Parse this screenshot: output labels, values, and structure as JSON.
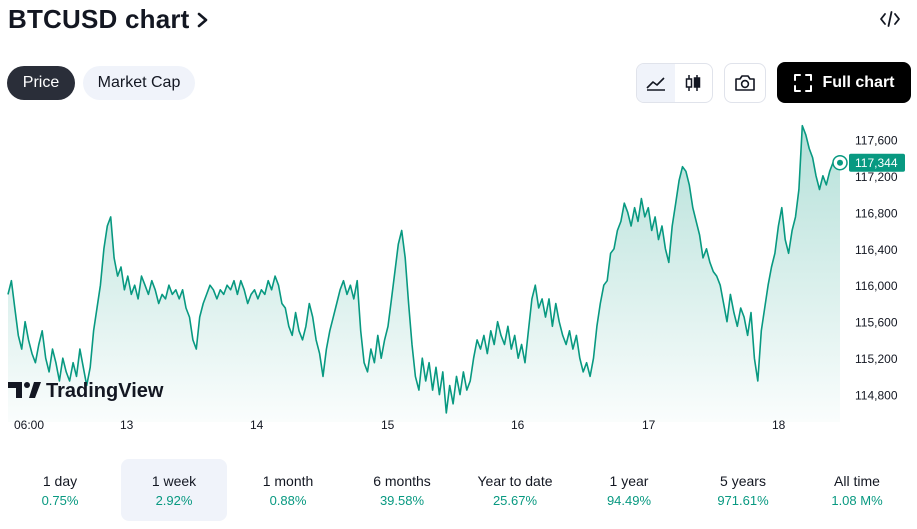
{
  "header": {
    "title": "BTCUSD chart",
    "chevron_icon": "chevron-right-icon",
    "embed_icon": "embed-code-icon"
  },
  "tabs": [
    {
      "label": "Price",
      "active": true
    },
    {
      "label": "Market Cap",
      "active": false
    }
  ],
  "toolbar": {
    "area_icon": "area-chart-icon",
    "candle_icon": "candlestick-icon",
    "snapshot_icon": "camera-icon",
    "full_chart_label": "Full chart",
    "full_chart_icon": "fullscreen-icon"
  },
  "colors": {
    "accent": "#089981",
    "dark": "#2a2e39",
    "text": "#131722",
    "muted": "#6a6d78"
  },
  "chart_data": {
    "type": "area",
    "watermark": "TradingView",
    "x_tick_labels": [
      "06:00",
      "13",
      "14",
      "15",
      "16",
      "17",
      "18"
    ],
    "y_tick_labels": [
      "117,600",
      "117,200",
      "116,800",
      "116,400",
      "116,000",
      "115,600",
      "115,200",
      "114,800"
    ],
    "ylim": [
      114500,
      117900
    ],
    "last_price": 117344,
    "last_price_label": "117,344",
    "grid": false,
    "series": [
      {
        "values": [
          115900,
          116050,
          115750,
          115450,
          115300,
          115600,
          115400,
          115250,
          115150,
          115350,
          115500,
          115200,
          115050,
          115300,
          115150,
          114950,
          115200,
          115050,
          114950,
          115150,
          115000,
          115300,
          115100,
          114900,
          115100,
          115500,
          115750,
          116000,
          116400,
          116650,
          116750,
          116300,
          116100,
          116200,
          115950,
          116100,
          115900,
          116000,
          115850,
          116100,
          116000,
          115900,
          116050,
          115950,
          115800,
          115900,
          115850,
          116000,
          115900,
          115950,
          115850,
          115950,
          115750,
          115650,
          115400,
          115300,
          115650,
          115800,
          115900,
          116000,
          115950,
          115850,
          115950,
          115900,
          116000,
          115950,
          116050,
          115900,
          116050,
          115950,
          115800,
          115900,
          115950,
          115850,
          115950,
          115900,
          116050,
          115950,
          116100,
          116000,
          115800,
          115750,
          115550,
          115450,
          115700,
          115500,
          115400,
          115550,
          115800,
          115650,
          115400,
          115250,
          115000,
          115300,
          115500,
          115650,
          115800,
          115950,
          116050,
          115900,
          116000,
          115850,
          116050,
          115500,
          115150,
          115050,
          115300,
          115150,
          115450,
          115200,
          115400,
          115550,
          115850,
          116150,
          116450,
          116600,
          116300,
          115800,
          115350,
          115000,
          114850,
          115200,
          114950,
          115150,
          114850,
          115100,
          114800,
          115050,
          114600,
          114900,
          114700,
          115000,
          114800,
          115050,
          114850,
          114950,
          115200,
          115400,
          115300,
          115450,
          115250,
          115500,
          115350,
          115600,
          115450,
          115350,
          115550,
          115300,
          115450,
          115200,
          115350,
          115150,
          115500,
          115850,
          116000,
          115750,
          115850,
          115650,
          115850,
          115550,
          115800,
          115600,
          115450,
          115350,
          115500,
          115300,
          115450,
          115200,
          115050,
          115150,
          115000,
          115200,
          115550,
          115800,
          116000,
          116050,
          116350,
          116400,
          116600,
          116700,
          116900,
          116800,
          116650,
          116850,
          116700,
          116950,
          116750,
          116850,
          116600,
          116750,
          116500,
          116650,
          116400,
          116250,
          116650,
          116900,
          117150,
          117300,
          117250,
          117100,
          116850,
          116700,
          116550,
          116300,
          116400,
          116250,
          116150,
          116100,
          116000,
          115800,
          115600,
          115900,
          115700,
          115550,
          115750,
          115650,
          115450,
          115700,
          115200,
          114950,
          115500,
          115750,
          116000,
          116200,
          116350,
          116650,
          116850,
          116500,
          116350,
          116600,
          116750,
          117050,
          117750,
          117650,
          117500,
          117400,
          117200,
          117050,
          117200,
          117100,
          117250,
          117350,
          117300,
          117344
        ]
      }
    ]
  },
  "periods": [
    {
      "label": "1 day",
      "change": "0.75%",
      "selected": false
    },
    {
      "label": "1 week",
      "change": "2.92%",
      "selected": true
    },
    {
      "label": "1 month",
      "change": "0.88%",
      "selected": false
    },
    {
      "label": "6 months",
      "change": "39.58%",
      "selected": false
    },
    {
      "label": "Year to date",
      "change": "25.67%",
      "selected": false
    },
    {
      "label": "1 year",
      "change": "94.49%",
      "selected": false
    },
    {
      "label": "5 years",
      "change": "971.61%",
      "selected": false
    },
    {
      "label": "All time",
      "change": "1.08 M%",
      "selected": false
    }
  ]
}
